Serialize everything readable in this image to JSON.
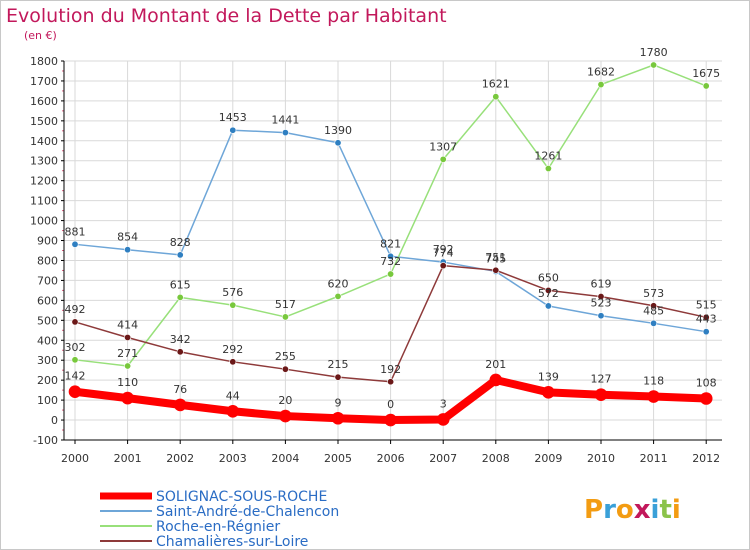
{
  "title": "Evolution du Montant de la Dette par Habitant",
  "subtitle": "(en €)",
  "logo": "Proxiti",
  "colors": {
    "title": "#c2185b",
    "axis": "#000000",
    "grid": "#d9d9d9",
    "minor_tick": "#e06080",
    "legend_text": "#2a6cc4",
    "logo_letters": [
      "#f39c12",
      "#3aa0d8",
      "#f39c12",
      "#c2185b",
      "#3aa0d8",
      "#8bc34a",
      "#f39c12"
    ]
  },
  "chart_data": {
    "type": "line",
    "x": [
      "2000",
      "2001",
      "2002",
      "2003",
      "2004",
      "2005",
      "2006",
      "2007",
      "2008",
      "2009",
      "2010",
      "2011",
      "2012"
    ],
    "ylim": [
      -100,
      1800
    ],
    "yticks": [
      -100,
      0,
      100,
      200,
      300,
      400,
      500,
      600,
      700,
      800,
      900,
      1000,
      1100,
      1200,
      1300,
      1400,
      1500,
      1600,
      1700,
      1800
    ],
    "grid": true,
    "legend_position": "bottom-left",
    "series": [
      {
        "name": "SOLIGNAC-SOUS-ROCHE",
        "color": "#ff0000",
        "width": 8,
        "marker_color": "#ff0000",
        "values": [
          142,
          110,
          76,
          44,
          20,
          9,
          0,
          3,
          201,
          139,
          127,
          118,
          108
        ]
      },
      {
        "name": "Saint-André-de-Chalencon",
        "color": "#6ea6d8",
        "width": 1.5,
        "marker_color": "#2f7fc1",
        "values": [
          881,
          854,
          828,
          1453,
          1441,
          1390,
          821,
          792,
          745,
          572,
          523,
          485,
          443
        ]
      },
      {
        "name": "Roche-en-Régnier",
        "color": "#98e07a",
        "width": 1.5,
        "marker_color": "#78c83c",
        "values": [
          302,
          271,
          615,
          576,
          517,
          620,
          732,
          1307,
          1621,
          1261,
          1682,
          1780,
          1675
        ]
      },
      {
        "name": "Chamalières-sur-Loire",
        "color": "#8e3a3a",
        "width": 1.5,
        "marker_color": "#6b1818",
        "values": [
          492,
          414,
          342,
          292,
          255,
          215,
          192,
          774,
          751,
          650,
          619,
          573,
          515
        ]
      }
    ]
  }
}
